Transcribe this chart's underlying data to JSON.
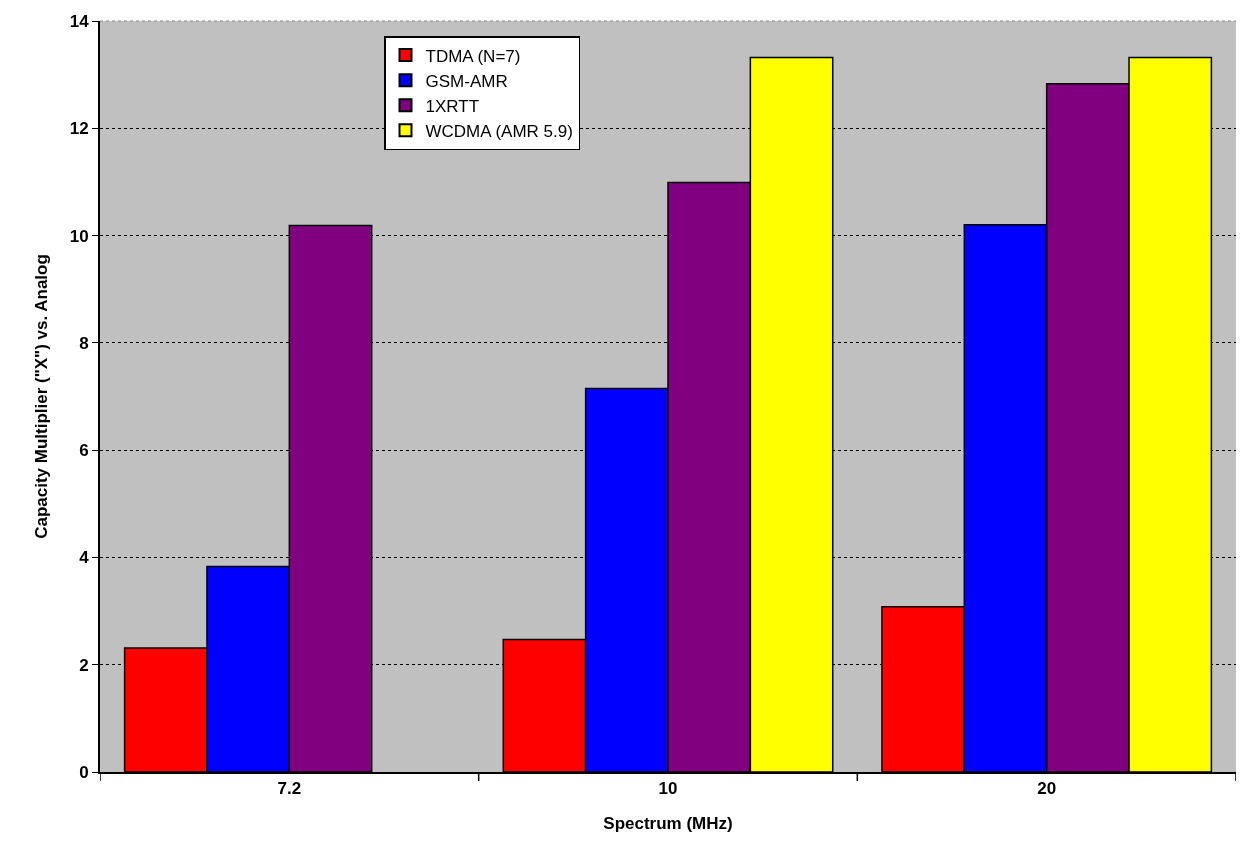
{
  "chart_data": {
    "type": "bar",
    "xlabel": "Spectrum (MHz)",
    "ylabel": "Capacity Multiplier (\"X\") vs. Analog",
    "categories": [
      "7.2",
      "10",
      "20"
    ],
    "series": [
      {
        "name": "TDMA (N=7)",
        "color": "#ff0000",
        "values": [
          2.31,
          2.47,
          3.08
        ]
      },
      {
        "name": "GSM-AMR",
        "color": "#0000ff",
        "values": [
          3.83,
          7.15,
          10.2
        ]
      },
      {
        "name": "1XRTT",
        "color": "#800080",
        "values": [
          10.19,
          10.99,
          12.83
        ]
      },
      {
        "name": "WCDMA (AMR 5.9)",
        "color": "#ffff00",
        "values": [
          null,
          13.32,
          13.32
        ]
      }
    ],
    "ylim": [
      0,
      14
    ],
    "yticks": [
      0,
      2,
      4,
      6,
      8,
      10,
      12,
      14
    ],
    "grid": "y",
    "legend": "top"
  }
}
